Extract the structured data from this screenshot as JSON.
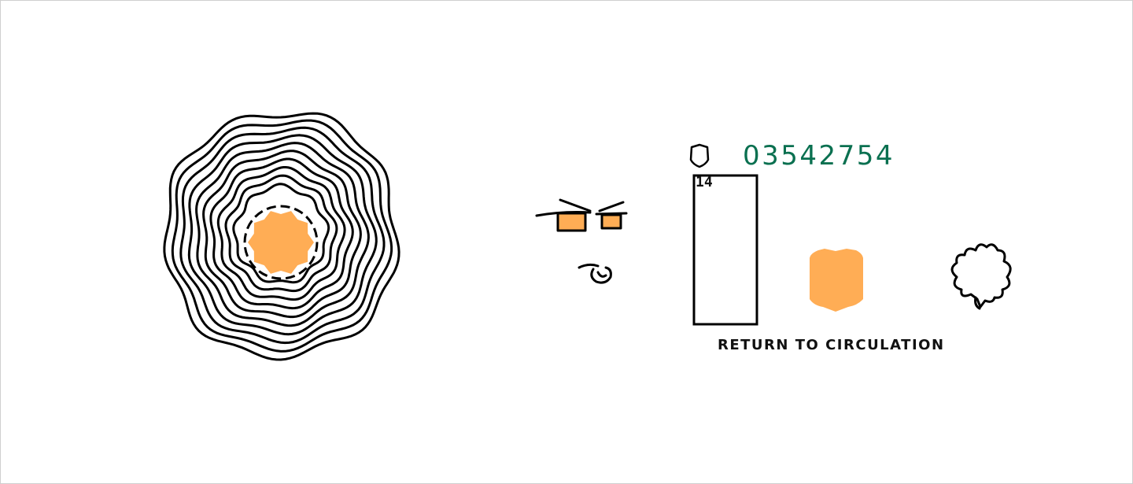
{
  "colors": {
    "ink": "#000000",
    "accent_orange": "#ffad55",
    "counter_green": "#0a7050"
  },
  "game": {
    "counter": "03542754",
    "slot_number": "14",
    "action_label": "RETURN TO CIRCULATION"
  },
  "icons": {
    "vortex": "concentric-wavy-rings-icon",
    "face": "glasses-face-icon",
    "badge_small": "shield-outline-icon",
    "badge_large": "orange-shield-icon",
    "blob": "fuzzy-blob-icon"
  }
}
